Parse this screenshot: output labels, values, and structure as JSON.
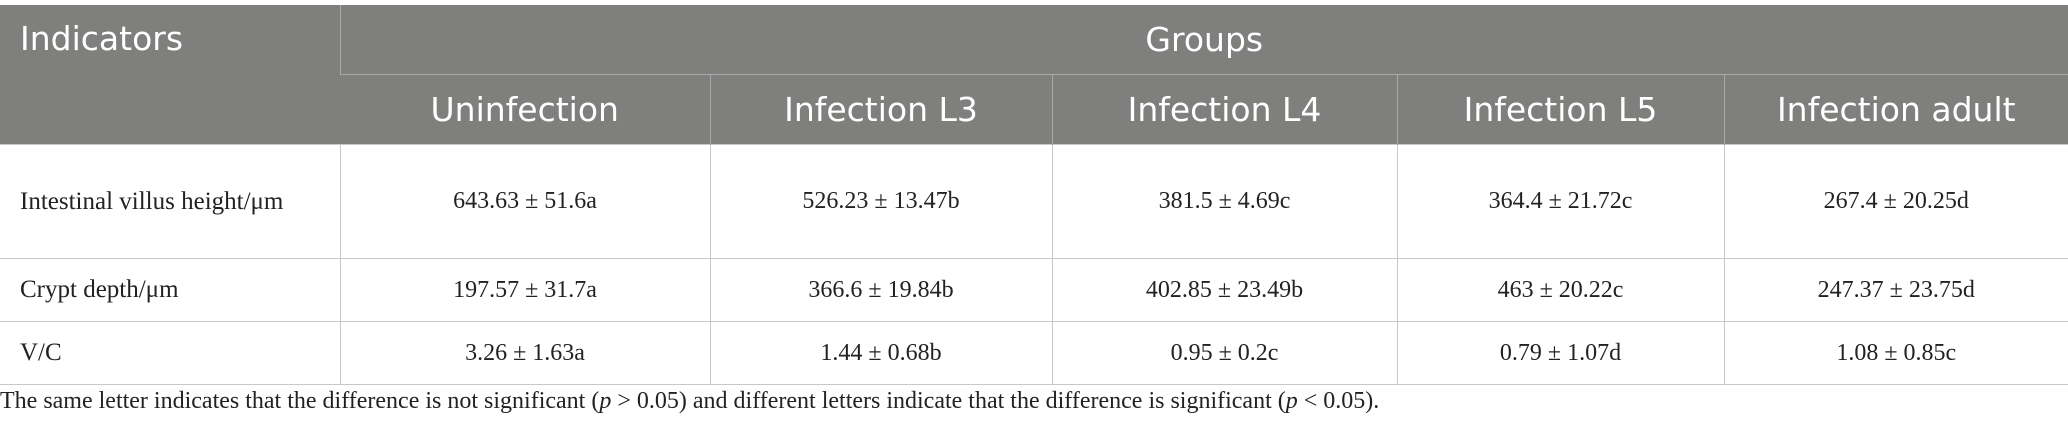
{
  "table": {
    "header": {
      "indicators": "Indicators",
      "groups": "Groups"
    },
    "columns": [
      "Uninfection",
      "Infection L3",
      "Infection L4",
      "Infection L5",
      "Infection adult"
    ],
    "rows": [
      {
        "label": "Intestinal villus height/μm",
        "cells": [
          "643.63 ± 51.6a",
          "526.23 ± 13.47b",
          "381.5 ± 4.69c",
          "364.4 ± 21.72c",
          "267.4 ± 20.25d"
        ]
      },
      {
        "label": "Crypt depth/μm",
        "cells": [
          "197.57 ± 31.7a",
          "366.6 ± 19.84b",
          "402.85 ± 23.49b",
          "463 ± 20.22c",
          "247.37 ± 23.75d"
        ]
      },
      {
        "label": "V/C",
        "cells": [
          "3.26 ± 1.63a",
          "1.44 ± 0.68b",
          "0.95 ± 0.2c",
          "0.79 ± 1.07d",
          "1.08 ± 0.85c"
        ]
      }
    ]
  },
  "footnote": [
    "The same letter indicates that the difference is not significant (",
    "p",
    " > 0.05) and different letters indicate that the difference is significant (",
    "p",
    " < 0.05)."
  ]
}
